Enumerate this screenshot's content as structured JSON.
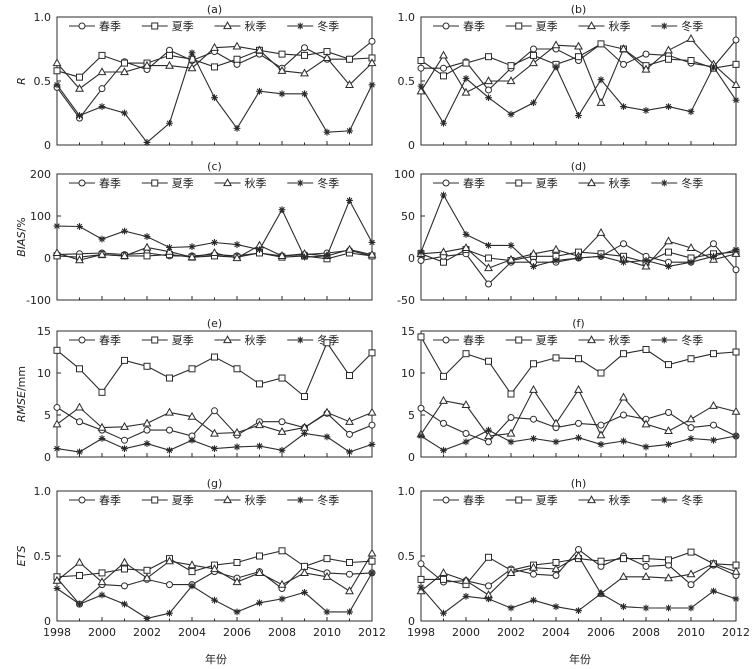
{
  "xlabel": "年份",
  "xticks": [
    1998,
    2000,
    2002,
    2004,
    2006,
    2008,
    2010,
    2012
  ],
  "legend": [
    "春季",
    "夏季",
    "秋季",
    "冬季"
  ],
  "markers": {
    "春季": "circle",
    "夏季": "square",
    "秋季": "triangle",
    "冬季": "star"
  },
  "line_color": "#2b2b2b",
  "chart_data": [
    {
      "type": "line",
      "title": "(a)",
      "ylabel": "R",
      "ylabel_unit": "",
      "ylim": [
        0,
        1
      ],
      "yticks": [
        "0",
        "0.5",
        "1.0"
      ],
      "ytick_values": [
        0,
        0.5,
        1.0
      ],
      "x": [
        1998,
        1999,
        2000,
        2001,
        2002,
        2003,
        2004,
        2005,
        2006,
        2007,
        2008,
        2009,
        2010,
        2011,
        2012
      ],
      "series": [
        {
          "name": "春季",
          "values": [
            0.45,
            0.21,
            0.44,
            0.65,
            0.59,
            0.74,
            0.66,
            0.73,
            0.63,
            0.71,
            0.6,
            0.76,
            0.67,
            0.67,
            0.81
          ]
        },
        {
          "name": "夏季",
          "values": [
            0.58,
            0.53,
            0.7,
            0.64,
            0.64,
            0.7,
            0.67,
            0.61,
            0.67,
            0.74,
            0.71,
            0.7,
            0.73,
            0.67,
            0.68
          ]
        },
        {
          "name": "秋季",
          "values": [
            0.64,
            0.44,
            0.57,
            0.57,
            0.62,
            0.62,
            0.6,
            0.76,
            0.77,
            0.74,
            0.58,
            0.56,
            0.68,
            0.47,
            0.64
          ]
        },
        {
          "name": "冬季",
          "values": [
            0.47,
            0.23,
            0.3,
            0.25,
            0.02,
            0.17,
            0.72,
            0.37,
            0.13,
            0.42,
            0.4,
            0.4,
            0.1,
            0.11,
            0.47
          ]
        }
      ]
    },
    {
      "type": "line",
      "title": "(b)",
      "ylabel": "",
      "ylabel_unit": "",
      "ylim": [
        0,
        1
      ],
      "yticks": [
        "0",
        "0.5",
        "1.0"
      ],
      "ytick_values": [
        0,
        0.5,
        1.0
      ],
      "x": [
        1998,
        1999,
        2000,
        2001,
        2002,
        2003,
        2004,
        2005,
        2006,
        2007,
        2008,
        2009,
        2010,
        2011,
        2012
      ],
      "series": [
        {
          "name": "春季",
          "values": [
            0.6,
            0.6,
            0.65,
            0.43,
            0.6,
            0.75,
            0.75,
            0.66,
            0.79,
            0.63,
            0.71,
            0.7,
            0.64,
            0.61,
            0.82
          ]
        },
        {
          "name": "夏季",
          "values": [
            0.66,
            0.54,
            0.64,
            0.69,
            0.62,
            0.7,
            0.63,
            0.69,
            0.79,
            0.75,
            0.62,
            0.67,
            0.66,
            0.6,
            0.63
          ]
        },
        {
          "name": "秋季",
          "values": [
            0.42,
            0.7,
            0.41,
            0.5,
            0.5,
            0.64,
            0.78,
            0.77,
            0.33,
            0.75,
            0.59,
            0.74,
            0.83,
            0.63,
            0.47
          ]
        },
        {
          "name": "冬季",
          "values": [
            0.46,
            0.17,
            0.52,
            0.37,
            0.24,
            0.33,
            0.61,
            0.23,
            0.51,
            0.3,
            0.27,
            0.3,
            0.26,
            0.61,
            0.35
          ]
        }
      ]
    },
    {
      "type": "line",
      "title": "(c)",
      "ylabel": "BIAS",
      "ylabel_unit": "/%",
      "ylim": [
        -100,
        200
      ],
      "yticks": [
        "-100",
        "0",
        "100",
        "200"
      ],
      "ytick_values": [
        -100,
        0,
        100,
        200
      ],
      "x": [
        1998,
        1999,
        2000,
        2001,
        2002,
        2003,
        2004,
        2005,
        2006,
        2007,
        2008,
        2009,
        2010,
        2011,
        2012
      ],
      "series": [
        {
          "name": "春季",
          "values": [
            8,
            10,
            12,
            8,
            12,
            5,
            5,
            8,
            5,
            12,
            5,
            8,
            12,
            18,
            5
          ]
        },
        {
          "name": "夏季",
          "values": [
            5,
            2,
            8,
            5,
            5,
            8,
            2,
            5,
            2,
            12,
            2,
            5,
            -2,
            12,
            5
          ]
        },
        {
          "name": "秋季",
          "values": [
            12,
            -5,
            8,
            5,
            25,
            15,
            2,
            12,
            0,
            30,
            5,
            10,
            5,
            20,
            8
          ]
        },
        {
          "name": "冬季",
          "values": [
            76,
            75,
            45,
            64,
            51,
            25,
            27,
            37,
            32,
            20,
            115,
            2,
            5,
            137,
            37
          ]
        }
      ]
    },
    {
      "type": "line",
      "title": "(d)",
      "ylabel": "",
      "ylabel_unit": "",
      "ylim": [
        -50,
        100
      ],
      "yticks": [
        "-50",
        "0",
        "50",
        "100"
      ],
      "ytick_values": [
        -50,
        0,
        50,
        100
      ],
      "x": [
        1998,
        1999,
        2000,
        2001,
        2002,
        2003,
        2004,
        2005,
        2006,
        2007,
        2008,
        2009,
        2010,
        2011,
        2012
      ],
      "series": [
        {
          "name": "春季",
          "values": [
            -3,
            2,
            5,
            -31,
            -5,
            -5,
            -5,
            0,
            2,
            17,
            2,
            -5,
            -5,
            17,
            -14
          ]
        },
        {
          "name": "夏季",
          "values": [
            5,
            -5,
            10,
            0,
            -3,
            2,
            2,
            7,
            5,
            2,
            -5,
            7,
            0,
            5,
            7
          ]
        },
        {
          "name": "秋季",
          "values": [
            5,
            7,
            12,
            -12,
            -2,
            5,
            10,
            2,
            30,
            -2,
            -10,
            20,
            12,
            -2,
            5
          ]
        },
        {
          "name": "冬季",
          "values": [
            7,
            75,
            28,
            15,
            15,
            -10,
            -3,
            0,
            2,
            -5,
            -3,
            -10,
            -5,
            2,
            10
          ]
        }
      ]
    },
    {
      "type": "line",
      "title": "(e)",
      "ylabel": "RMSE",
      "ylabel_unit": "/mm",
      "ylim": [
        0,
        15
      ],
      "yticks": [
        "0",
        "5",
        "10",
        "15"
      ],
      "ytick_values": [
        0,
        5,
        10,
        15
      ],
      "x": [
        1998,
        1999,
        2000,
        2001,
        2002,
        2003,
        2004,
        2005,
        2006,
        2007,
        2008,
        2009,
        2010,
        2011,
        2012
      ],
      "series": [
        {
          "name": "春季",
          "values": [
            5.9,
            4.2,
            3.2,
            2.0,
            3.2,
            3.2,
            2.5,
            5.5,
            2.6,
            4.2,
            4.2,
            3.5,
            5.2,
            2.7,
            3.8
          ]
        },
        {
          "name": "夏季",
          "values": [
            12.7,
            10.5,
            7.7,
            11.5,
            10.8,
            9.4,
            10.5,
            11.9,
            10.5,
            8.7,
            9.4,
            7.2,
            13.6,
            9.7,
            12.4
          ]
        },
        {
          "name": "秋季",
          "values": [
            3.9,
            5.9,
            3.5,
            3.6,
            4.0,
            5.3,
            4.8,
            2.8,
            2.9,
            3.8,
            3.0,
            3.5,
            5.3,
            4.2,
            5.3
          ]
        },
        {
          "name": "冬季",
          "values": [
            1.0,
            0.6,
            2.2,
            1.0,
            1.6,
            0.8,
            2.0,
            1.0,
            1.2,
            1.3,
            0.8,
            2.8,
            2.4,
            0.6,
            1.5
          ]
        }
      ]
    },
    {
      "type": "line",
      "title": "(f)",
      "ylabel": "",
      "ylabel_unit": "",
      "ylim": [
        0,
        15
      ],
      "yticks": [
        "0",
        "5",
        "10",
        "15"
      ],
      "ytick_values": [
        0,
        5,
        10,
        15
      ],
      "x": [
        1998,
        1999,
        2000,
        2001,
        2002,
        2003,
        2004,
        2005,
        2006,
        2007,
        2008,
        2009,
        2010,
        2011,
        2012
      ],
      "series": [
        {
          "name": "春季",
          "values": [
            5.8,
            4.0,
            2.8,
            1.8,
            4.7,
            4.5,
            3.5,
            4.0,
            3.8,
            5.0,
            4.5,
            5.3,
            3.5,
            3.8,
            2.5
          ]
        },
        {
          "name": "夏季",
          "values": [
            14.3,
            9.6,
            12.3,
            11.4,
            7.5,
            11.1,
            11.8,
            11.7,
            10.0,
            12.3,
            12.8,
            11.0,
            11.7,
            12.3,
            12.5
          ]
        },
        {
          "name": "秋季",
          "values": [
            2.7,
            6.7,
            6.2,
            2.5,
            2.8,
            8.0,
            4.0,
            8.0,
            2.6,
            7.1,
            3.9,
            3.1,
            4.5,
            6.1,
            5.4
          ]
        },
        {
          "name": "冬季",
          "values": [
            2.5,
            0.8,
            1.8,
            3.2,
            1.8,
            2.2,
            1.8,
            2.3,
            1.5,
            1.9,
            1.2,
            1.5,
            2.2,
            2.0,
            2.5
          ]
        }
      ]
    },
    {
      "type": "line",
      "title": "(g)",
      "ylabel": "ETS",
      "ylabel_unit": "",
      "ylim": [
        0,
        1
      ],
      "yticks": [
        "0",
        "0.5",
        "1.0"
      ],
      "ytick_values": [
        0,
        0.5,
        1.0
      ],
      "x": [
        1998,
        1999,
        2000,
        2001,
        2002,
        2003,
        2004,
        2005,
        2006,
        2007,
        2008,
        2009,
        2010,
        2011,
        2012
      ],
      "series": [
        {
          "name": "春季",
          "values": [
            0.33,
            0.13,
            0.28,
            0.27,
            0.32,
            0.28,
            0.28,
            0.38,
            0.33,
            0.38,
            0.25,
            0.42,
            0.37,
            0.36,
            0.37
          ]
        },
        {
          "name": "夏季",
          "values": [
            0.34,
            0.35,
            0.37,
            0.4,
            0.39,
            0.48,
            0.38,
            0.43,
            0.45,
            0.5,
            0.54,
            0.42,
            0.48,
            0.45,
            0.46
          ]
        },
        {
          "name": "秋季",
          "values": [
            0.31,
            0.45,
            0.3,
            0.45,
            0.33,
            0.46,
            0.43,
            0.4,
            0.3,
            0.37,
            0.28,
            0.37,
            0.34,
            0.23,
            0.52
          ]
        },
        {
          "name": "冬季",
          "values": [
            0.25,
            0.13,
            0.2,
            0.13,
            0.02,
            0.06,
            0.27,
            0.16,
            0.07,
            0.14,
            0.17,
            0.22,
            0.07,
            0.07,
            0.37
          ]
        }
      ]
    },
    {
      "type": "line",
      "title": "(h)",
      "ylabel": "",
      "ylabel_unit": "",
      "ylim": [
        0,
        1
      ],
      "yticks": [
        "0",
        "0.5",
        "1.0"
      ],
      "ytick_values": [
        0,
        0.5,
        1.0
      ],
      "x": [
        1998,
        1999,
        2000,
        2001,
        2002,
        2003,
        2004,
        2005,
        2006,
        2007,
        2008,
        2009,
        2010,
        2011,
        2012
      ],
      "series": [
        {
          "name": "春季",
          "values": [
            0.44,
            0.3,
            0.31,
            0.27,
            0.4,
            0.36,
            0.35,
            0.55,
            0.42,
            0.5,
            0.42,
            0.43,
            0.28,
            0.43,
            0.35
          ]
        },
        {
          "name": "夏季",
          "values": [
            0.32,
            0.32,
            0.28,
            0.49,
            0.39,
            0.43,
            0.45,
            0.48,
            0.46,
            0.48,
            0.48,
            0.47,
            0.53,
            0.44,
            0.43
          ]
        },
        {
          "name": "秋季",
          "values": [
            0.23,
            0.37,
            0.31,
            0.2,
            0.37,
            0.41,
            0.4,
            0.5,
            0.21,
            0.34,
            0.34,
            0.33,
            0.36,
            0.44,
            0.38
          ]
        },
        {
          "name": "冬季",
          "values": [
            0.26,
            0.06,
            0.19,
            0.17,
            0.1,
            0.16,
            0.11,
            0.08,
            0.21,
            0.11,
            0.1,
            0.1,
            0.1,
            0.23,
            0.17
          ]
        }
      ]
    }
  ]
}
